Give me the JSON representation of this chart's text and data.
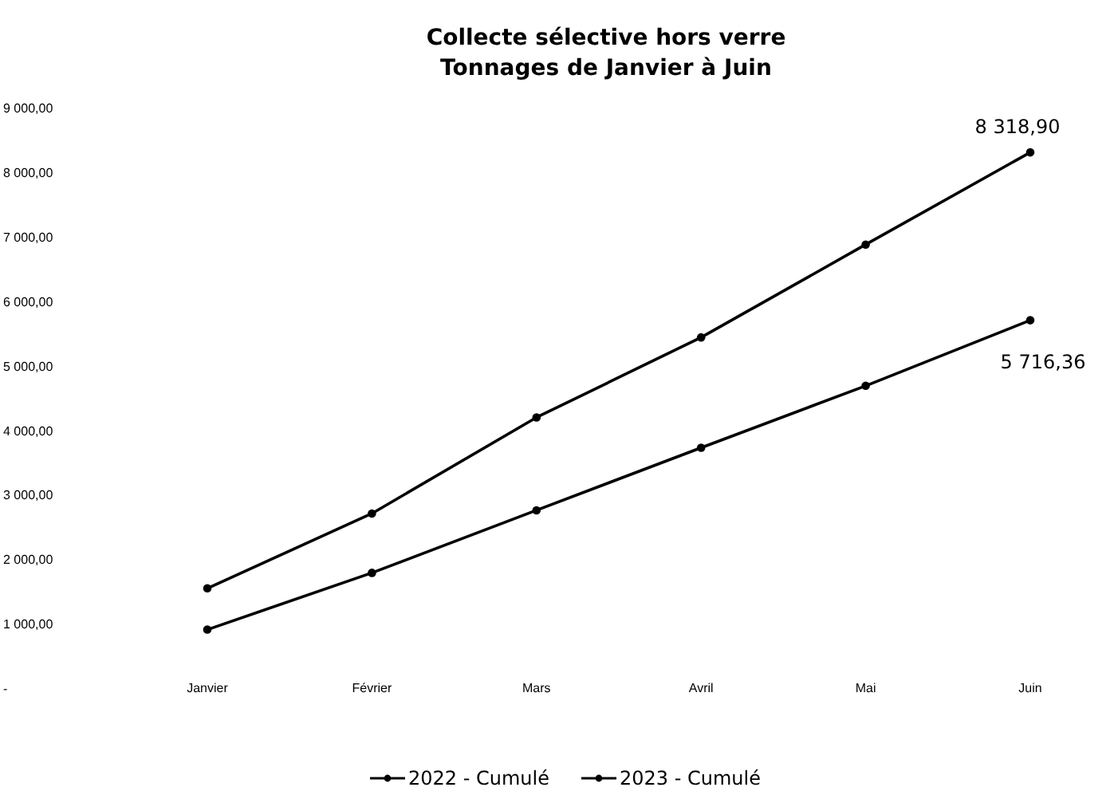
{
  "chart_data": {
    "type": "line",
    "title": "Collecte sélective hors verre",
    "subtitle": "Tonnages de Janvier à Juin",
    "categories": [
      "Janvier",
      "Février",
      "Mars",
      "Avril",
      "Mai",
      "Juin"
    ],
    "series": [
      {
        "name": "2022 - Cumulé",
        "color": "#000000",
        "values": [
          1560,
          2720,
          4210,
          5450,
          6890,
          8318.9
        ],
        "value_labels": [
          null,
          null,
          null,
          null,
          null,
          "8 318,90"
        ]
      },
      {
        "name": "2023 - Cumulé",
        "color": "#000000",
        "values": [
          920,
          1800,
          2770,
          3740,
          4700,
          5716.36
        ],
        "value_labels": [
          null,
          null,
          null,
          null,
          null,
          "5 716,36"
        ]
      }
    ],
    "ylim": [
      0,
      9000
    ],
    "yticks": [
      {
        "value": 0,
        "label": "-"
      },
      {
        "value": 1000,
        "label": "1 000,00"
      },
      {
        "value": 2000,
        "label": "2 000,00"
      },
      {
        "value": 3000,
        "label": "3 000,00"
      },
      {
        "value": 4000,
        "label": "4 000,00"
      },
      {
        "value": 5000,
        "label": "5 000,00"
      },
      {
        "value": 6000,
        "label": "6 000,00"
      },
      {
        "value": 7000,
        "label": "7 000,00"
      },
      {
        "value": 8000,
        "label": "8 000,00"
      },
      {
        "value": 9000,
        "label": "9 000,00"
      }
    ],
    "grid": false,
    "legend": "bottom",
    "marker": "circle",
    "line_style": "solid"
  }
}
